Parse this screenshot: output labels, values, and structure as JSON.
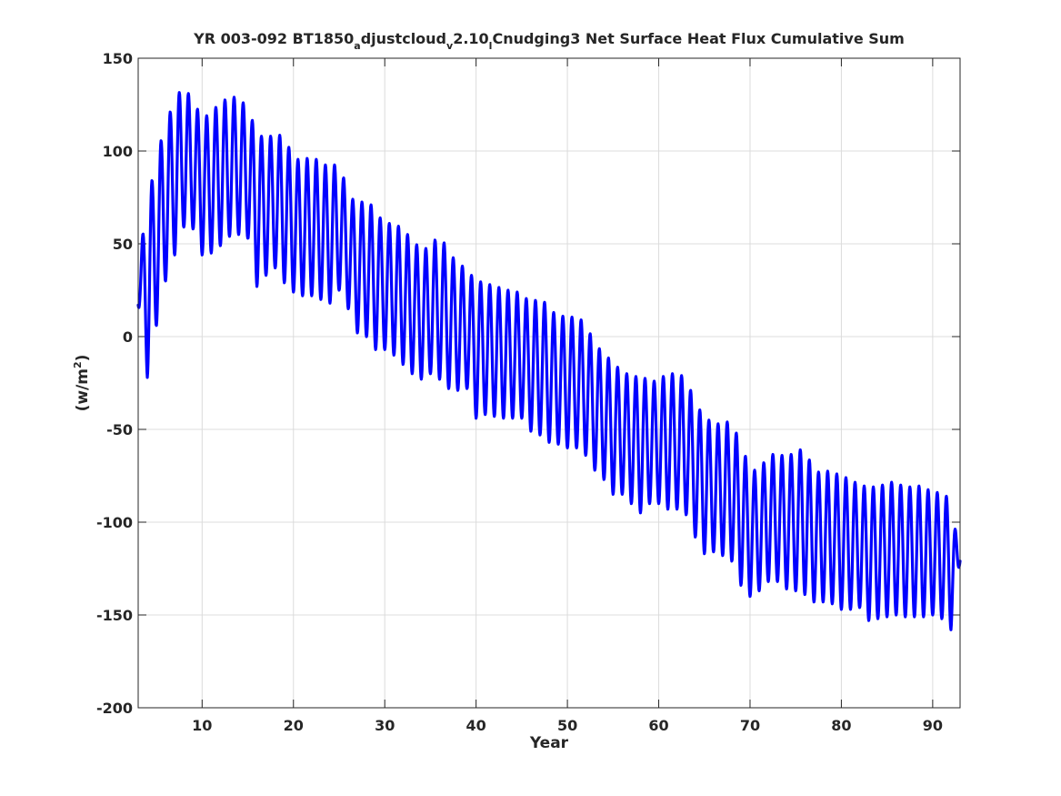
{
  "chart_data": {
    "type": "line",
    "title_parts": {
      "p1": "YR 003-092 BT1850",
      "s1": "a",
      "p2": "djustcloud",
      "s2": "v",
      "p3": "2.10",
      "s3": "l",
      "p4": "Cnudging3 Net Surface Heat Flux  Cumulative Sum"
    },
    "xlabel": "Year",
    "ylabel_parts": {
      "base": "(w/m",
      "sup": "2",
      "close": ")"
    },
    "xlim": [
      3,
      93
    ],
    "ylim": [
      -200,
      150
    ],
    "xticks": [
      10,
      20,
      30,
      40,
      50,
      60,
      70,
      80,
      90
    ],
    "yticks": [
      150,
      100,
      50,
      0,
      -50,
      -100,
      -150,
      -200
    ],
    "grid": true,
    "line_color": "#0000ff",
    "series": [
      {
        "annual_cycle": [
          {
            "year": 3.0,
            "max": 40,
            "min": 17
          },
          {
            "year": 4.0,
            "max": 70,
            "min": -22
          },
          {
            "year": 5.0,
            "max": 98,
            "min": 6
          },
          {
            "year": 6.0,
            "max": 113,
            "min": 30
          },
          {
            "year": 7.0,
            "max": 129,
            "min": 44
          },
          {
            "year": 8.0,
            "max": 134,
            "min": 59
          },
          {
            "year": 9.0,
            "max": 128,
            "min": 58
          },
          {
            "year": 10.0,
            "max": 117,
            "min": 44
          },
          {
            "year": 11.0,
            "max": 121,
            "min": 45
          },
          {
            "year": 12.0,
            "max": 126,
            "min": 49
          },
          {
            "year": 13.0,
            "max": 129,
            "min": 54
          },
          {
            "year": 14.0,
            "max": 129,
            "min": 55
          },
          {
            "year": 15.0,
            "max": 123,
            "min": 53
          },
          {
            "year": 16.0,
            "max": 110,
            "min": 27
          },
          {
            "year": 17.0,
            "max": 106,
            "min": 33
          },
          {
            "year": 18.0,
            "max": 110,
            "min": 37
          },
          {
            "year": 19.0,
            "max": 107,
            "min": 29
          },
          {
            "year": 20.0,
            "max": 97,
            "min": 24
          },
          {
            "year": 21.0,
            "max": 94,
            "min": 22
          },
          {
            "year": 22.0,
            "max": 98,
            "min": 22
          },
          {
            "year": 23.0,
            "max": 93,
            "min": 20
          },
          {
            "year": 24.0,
            "max": 92,
            "min": 18
          },
          {
            "year": 25.0,
            "max": 93,
            "min": 25
          },
          {
            "year": 26.0,
            "max": 78,
            "min": 15
          },
          {
            "year": 27.0,
            "max": 70,
            "min": 2
          },
          {
            "year": 28.0,
            "max": 75,
            "min": 0
          },
          {
            "year": 29.0,
            "max": 67,
            "min": -7
          },
          {
            "year": 30.0,
            "max": 61,
            "min": -7
          },
          {
            "year": 31.0,
            "max": 61,
            "min": -10
          },
          {
            "year": 32.0,
            "max": 58,
            "min": -15
          },
          {
            "year": 33.0,
            "max": 52,
            "min": -20
          },
          {
            "year": 34.0,
            "max": 47,
            "min": -23
          },
          {
            "year": 35.0,
            "max": 48,
            "min": -20
          },
          {
            "year": 36.0,
            "max": 56,
            "min": -23
          },
          {
            "year": 37.0,
            "max": 45,
            "min": -28
          },
          {
            "year": 38.0,
            "max": 40,
            "min": -29
          },
          {
            "year": 39.0,
            "max": 36,
            "min": -28
          },
          {
            "year": 40.0,
            "max": 30,
            "min": -44
          },
          {
            "year": 41.0,
            "max": 29,
            "min": -42
          },
          {
            "year": 42.0,
            "max": 27,
            "min": -43
          },
          {
            "year": 43.0,
            "max": 26,
            "min": -44
          },
          {
            "year": 44.0,
            "max": 24,
            "min": -44
          },
          {
            "year": 45.0,
            "max": 24,
            "min": -44
          },
          {
            "year": 46.0,
            "max": 17,
            "min": -51
          },
          {
            "year": 47.0,
            "max": 22,
            "min": -53
          },
          {
            "year": 48.0,
            "max": 15,
            "min": -57
          },
          {
            "year": 49.0,
            "max": 11,
            "min": -58
          },
          {
            "year": 50.0,
            "max": 11,
            "min": -60
          },
          {
            "year": 51.0,
            "max": 10,
            "min": -60
          },
          {
            "year": 52.0,
            "max": 8,
            "min": -64
          },
          {
            "year": 53.0,
            "max": -5,
            "min": -72
          },
          {
            "year": 54.0,
            "max": -8,
            "min": -77
          },
          {
            "year": 55.0,
            "max": -15,
            "min": -85
          },
          {
            "year": 56.0,
            "max": -18,
            "min": -85
          },
          {
            "year": 57.0,
            "max": -22,
            "min": -90
          },
          {
            "year": 58.0,
            "max": -21,
            "min": -95
          },
          {
            "year": 59.0,
            "max": -24,
            "min": -90
          },
          {
            "year": 60.0,
            "max": -24,
            "min": -90
          },
          {
            "year": 61.0,
            "max": -19,
            "min": -93
          },
          {
            "year": 62.0,
            "max": -21,
            "min": -93
          },
          {
            "year": 63.0,
            "max": -21,
            "min": -96
          },
          {
            "year": 64.0,
            "max": -37,
            "min": -108
          },
          {
            "year": 65.0,
            "max": -42,
            "min": -117
          },
          {
            "year": 66.0,
            "max": -48,
            "min": -116
          },
          {
            "year": 67.0,
            "max": -46,
            "min": -118
          },
          {
            "year": 68.0,
            "max": -46,
            "min": -121
          },
          {
            "year": 69.0,
            "max": -58,
            "min": -134
          },
          {
            "year": 70.0,
            "max": -71,
            "min": -140
          },
          {
            "year": 71.0,
            "max": -73,
            "min": -137
          },
          {
            "year": 72.0,
            "max": -63,
            "min": -132
          },
          {
            "year": 73.0,
            "max": -64,
            "min": -132
          },
          {
            "year": 74.0,
            "max": -64,
            "min": -136
          },
          {
            "year": 75.0,
            "max": -63,
            "min": -137
          },
          {
            "year": 76.0,
            "max": -59,
            "min": -139
          },
          {
            "year": 77.0,
            "max": -74,
            "min": -143
          },
          {
            "year": 78.0,
            "max": -72,
            "min": -143
          },
          {
            "year": 79.0,
            "max": -73,
            "min": -144
          },
          {
            "year": 80.0,
            "max": -75,
            "min": -147
          },
          {
            "year": 81.0,
            "max": -77,
            "min": -147
          },
          {
            "year": 82.0,
            "max": -80,
            "min": -146
          },
          {
            "year": 83.0,
            "max": -81,
            "min": -153
          },
          {
            "year": 84.0,
            "max": -81,
            "min": -152
          },
          {
            "year": 85.0,
            "max": -79,
            "min": -151
          },
          {
            "year": 86.0,
            "max": -78,
            "min": -150
          },
          {
            "year": 87.0,
            "max": -82,
            "min": -151
          },
          {
            "year": 88.0,
            "max": -80,
            "min": -151
          },
          {
            "year": 89.0,
            "max": -81,
            "min": -151
          },
          {
            "year": 90.0,
            "max": -84,
            "min": -150
          },
          {
            "year": 91.0,
            "max": -84,
            "min": -152
          },
          {
            "year": 92.0,
            "max": -88,
            "min": -158
          },
          {
            "year": 93.0,
            "max": -121,
            "min": -121
          }
        ]
      }
    ]
  }
}
